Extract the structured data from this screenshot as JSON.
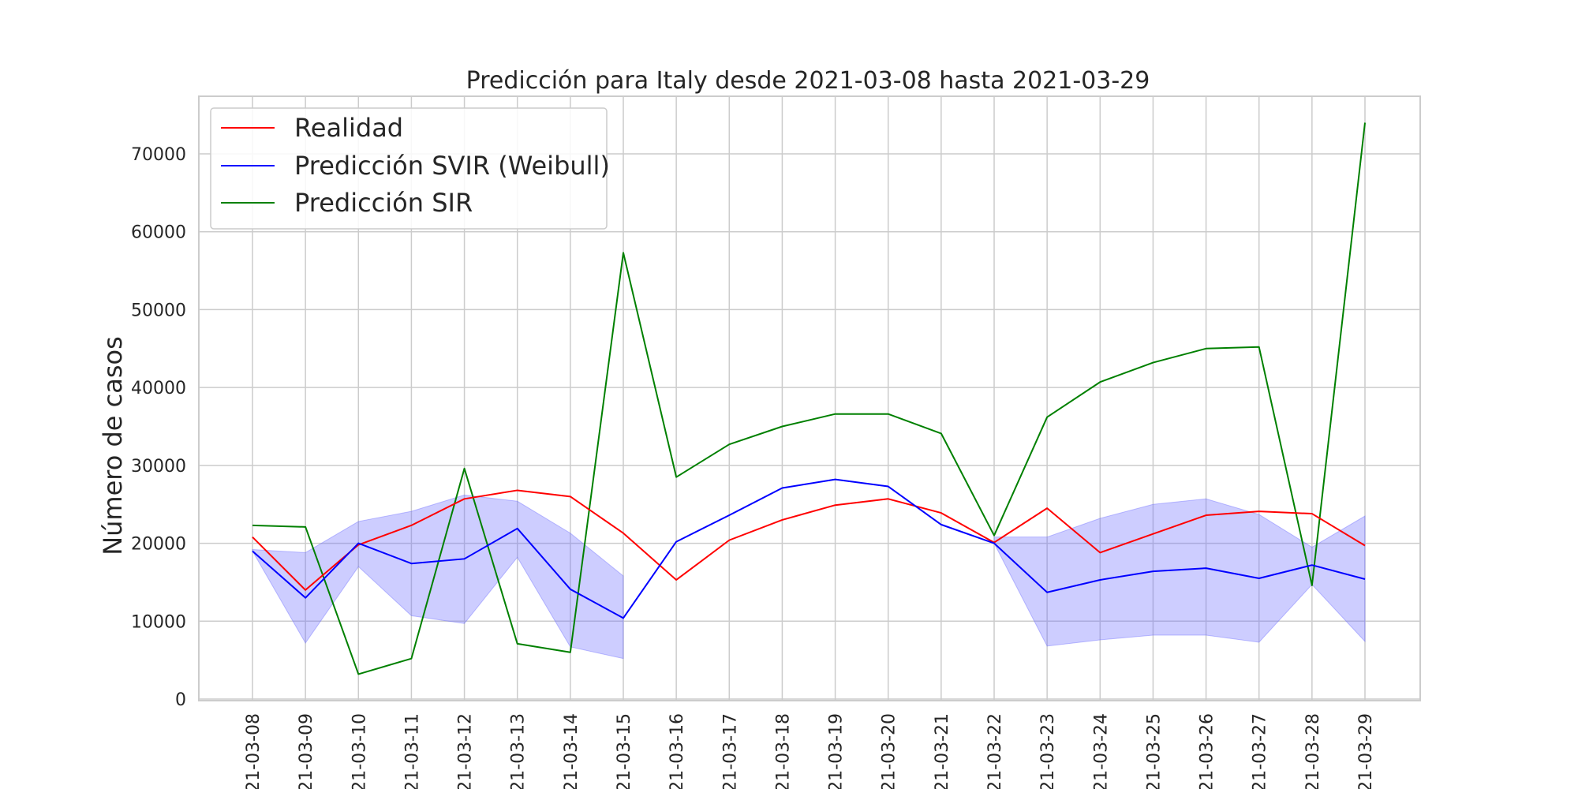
{
  "chart_data": {
    "type": "line",
    "title": "Predicción para Italy desde 2021-03-08 hasta 2021-03-29",
    "xlabel": "",
    "ylabel": "Número de casos",
    "x": [
      "2021-03-08",
      "2021-03-09",
      "2021-03-10",
      "2021-03-11",
      "2021-03-12",
      "2021-03-13",
      "2021-03-14",
      "2021-03-15",
      "2021-03-16",
      "2021-03-17",
      "2021-03-18",
      "2021-03-19",
      "2021-03-20",
      "2021-03-21",
      "2021-03-22",
      "2021-03-23",
      "2021-03-24",
      "2021-03-25",
      "2021-03-26",
      "2021-03-27",
      "2021-03-28",
      "2021-03-29"
    ],
    "x_tick_labels": [
      "21-03-08",
      "21-03-09",
      "21-03-10",
      "21-03-11",
      "21-03-12",
      "21-03-13",
      "21-03-14",
      "21-03-15",
      "21-03-16",
      "21-03-17",
      "21-03-18",
      "21-03-19",
      "21-03-20",
      "21-03-21",
      "21-03-22",
      "21-03-23",
      "21-03-24",
      "21-03-25",
      "21-03-26",
      "21-03-27",
      "21-03-28",
      "21-03-29"
    ],
    "ylim": [
      0,
      78000
    ],
    "y_ticks": [
      0,
      10000,
      20000,
      30000,
      40000,
      50000,
      60000,
      70000
    ],
    "grid": true,
    "legend_position": "top-left",
    "series": [
      {
        "name": "Realidad",
        "color": "#ff0000",
        "values": [
          20800,
          14000,
          19800,
          22300,
          25700,
          26800,
          26000,
          21300,
          15300,
          20400,
          23000,
          24900,
          25700,
          23900,
          20100,
          24500,
          18800,
          21200,
          23600,
          24100,
          23800,
          19700
        ]
      },
      {
        "name": "Predicción SVIR (Weibull)",
        "color": "#0000ff",
        "values": [
          19000,
          13000,
          20000,
          17400,
          18000,
          21900,
          14100,
          10400,
          20200,
          23600,
          27100,
          28200,
          27300,
          22400,
          20000,
          13700,
          15300,
          16400,
          16800,
          15500,
          17200,
          15400
        ],
        "band_lower": [
          19000,
          7200,
          17000,
          10700,
          9700,
          18200,
          6700,
          5200,
          null,
          null,
          null,
          null,
          null,
          null,
          20000,
          6800,
          7600,
          8200,
          8200,
          7300,
          14700,
          7400
        ],
        "band_upper": [
          19200,
          18800,
          22800,
          24100,
          26200,
          25400,
          21300,
          15800,
          null,
          null,
          null,
          null,
          null,
          null,
          20800,
          20800,
          23200,
          25000,
          25700,
          23700,
          19500,
          23500
        ],
        "band_color": "#6666ff"
      },
      {
        "name": "Predicción SIR",
        "color": "#008000",
        "values": [
          22300,
          22100,
          3200,
          5200,
          29600,
          7100,
          6000,
          57300,
          28500,
          32700,
          35000,
          36600,
          36600,
          34100,
          21000,
          36200,
          40700,
          43200,
          45000,
          45200,
          14600,
          74000
        ]
      }
    ]
  }
}
